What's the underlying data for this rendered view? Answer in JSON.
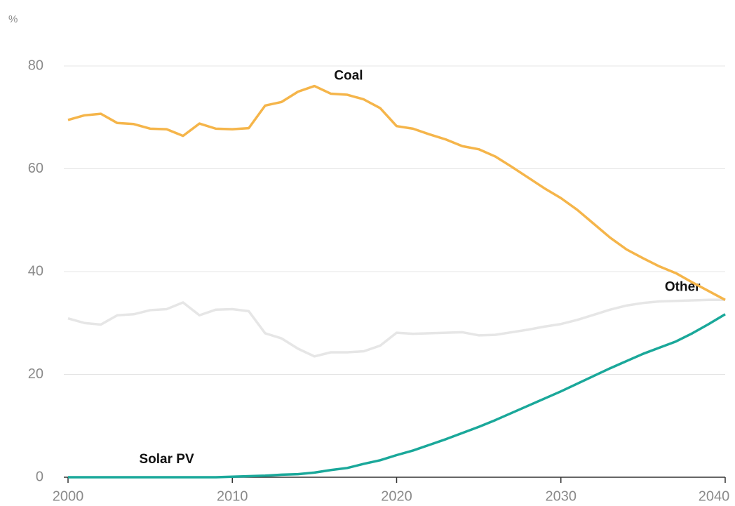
{
  "chart_data": {
    "type": "line",
    "y_label": "%",
    "x": [
      2000,
      2001,
      2002,
      2003,
      2004,
      2005,
      2006,
      2007,
      2008,
      2009,
      2010,
      2011,
      2012,
      2013,
      2014,
      2015,
      2016,
      2017,
      2018,
      2019,
      2020,
      2021,
      2022,
      2023,
      2024,
      2025,
      2026,
      2027,
      2028,
      2029,
      2030,
      2031,
      2032,
      2033,
      2034,
      2035,
      2036,
      2037,
      2038,
      2039,
      2040
    ],
    "series": [
      {
        "name": "Coal",
        "color": "#f5b54a",
        "values": [
          69.5,
          70.4,
          70.7,
          68.9,
          68.7,
          67.8,
          67.7,
          66.4,
          68.8,
          67.8,
          67.7,
          67.9,
          72.3,
          73.0,
          75.0,
          76.1,
          74.6,
          74.4,
          73.5,
          71.8,
          68.3,
          67.8,
          66.7,
          65.7,
          64.4,
          63.8,
          62.4,
          60.4,
          58.3,
          56.2,
          54.3,
          52.0,
          49.3,
          46.6,
          44.3,
          42.6,
          41.0,
          39.7,
          37.9,
          36.2,
          34.5
        ]
      },
      {
        "name": "Other",
        "color": "#e6e6e6",
        "values": [
          30.9,
          30.0,
          29.7,
          31.5,
          31.7,
          32.5,
          32.7,
          34.0,
          31.5,
          32.6,
          32.7,
          32.3,
          28.0,
          27.0,
          25.0,
          23.5,
          24.3,
          24.3,
          24.5,
          25.6,
          28.1,
          27.9,
          28.0,
          28.1,
          28.2,
          27.6,
          27.7,
          28.2,
          28.7,
          29.3,
          29.8,
          30.6,
          31.6,
          32.6,
          33.4,
          33.9,
          34.2,
          34.3,
          34.4,
          34.5,
          34.5
        ]
      },
      {
        "name": "Solar PV",
        "color": "#1aa89a",
        "values": [
          0,
          0,
          0,
          0,
          0,
          0,
          0,
          0,
          0,
          0,
          0.1,
          0.2,
          0.3,
          0.5,
          0.6,
          0.9,
          1.4,
          1.8,
          2.6,
          3.3,
          4.3,
          5.2,
          6.3,
          7.4,
          8.6,
          9.8,
          11.1,
          12.5,
          13.9,
          15.3,
          16.7,
          18.2,
          19.7,
          21.2,
          22.6,
          24.0,
          25.2,
          26.4,
          28.0,
          29.8,
          31.7
        ]
      }
    ],
    "xlim": [
      2000,
      2040
    ],
    "xticks": [
      2000,
      2010,
      2020,
      2030,
      2040
    ],
    "ylim": [
      0,
      80
    ],
    "yticks": [
      0,
      20,
      40,
      60,
      80
    ],
    "grid": true
  }
}
